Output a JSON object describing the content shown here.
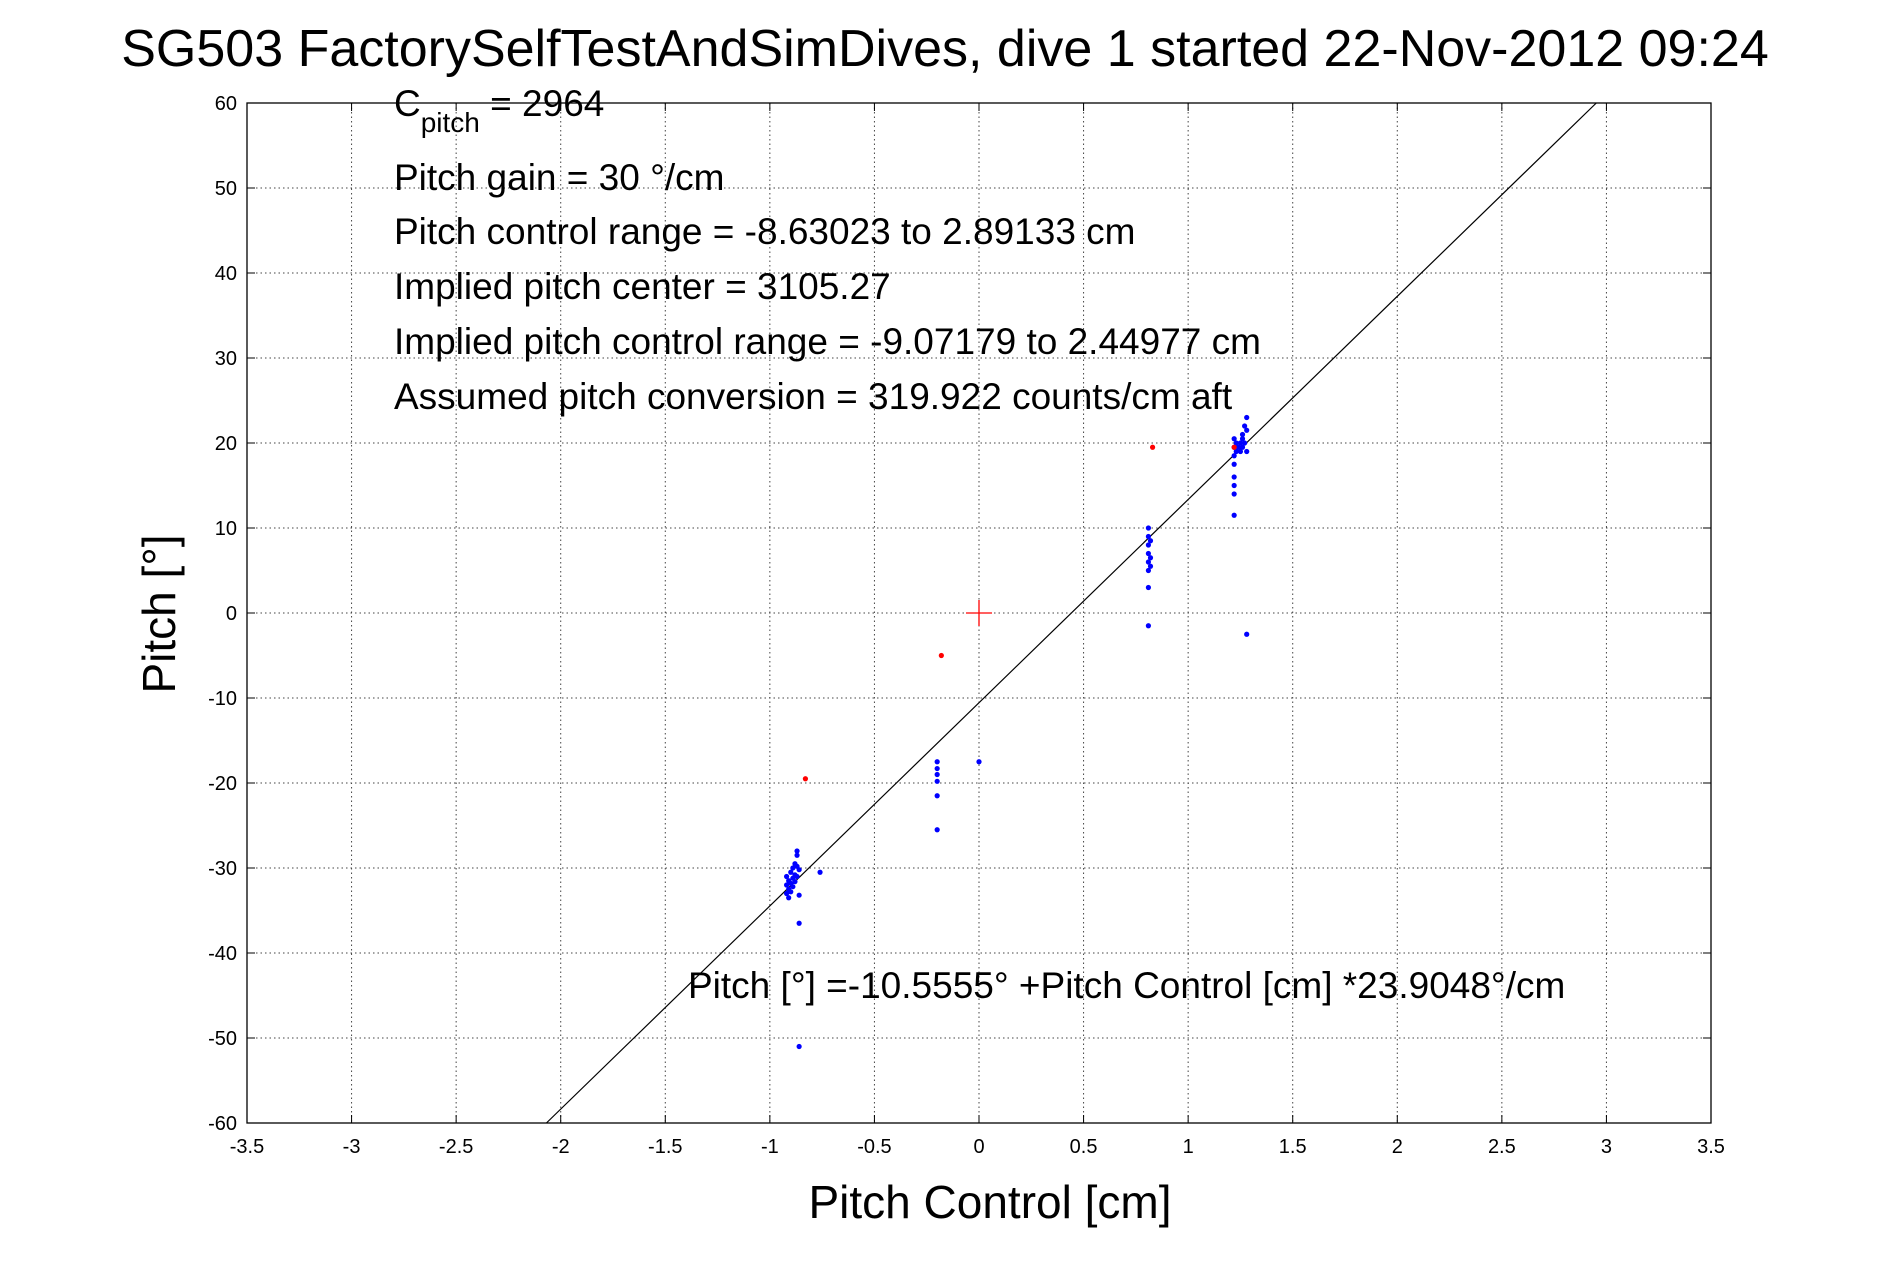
{
  "chart_data": {
    "type": "scatter",
    "title": "SG503 FactorySelfTestAndSimDives, dive 1 started 22-Nov-2012 09:24",
    "xlabel": "Pitch Control [cm]",
    "ylabel": "Pitch [°]",
    "xlim": [
      -3.5,
      3.5
    ],
    "ylim": [
      -60,
      60
    ],
    "xticks": [
      -3.5,
      -3,
      -2.5,
      -2,
      -1.5,
      -1,
      -0.5,
      0,
      0.5,
      1,
      1.5,
      2,
      2.5,
      3,
      3.5
    ],
    "yticks": [
      -60,
      -50,
      -40,
      -30,
      -20,
      -10,
      0,
      10,
      20,
      30,
      40,
      50,
      60
    ],
    "xtick_labels": [
      "-3.5",
      "-3",
      "-2.5",
      "-2",
      "-1.5",
      "-1",
      "-0.5",
      "0",
      "0.5",
      "1",
      "1.5",
      "2",
      "2.5",
      "3",
      "3.5"
    ],
    "ytick_labels": [
      "-60",
      "-50",
      "-40",
      "-30",
      "-20",
      "-10",
      "0",
      "10",
      "20",
      "30",
      "40",
      "50",
      "60"
    ],
    "grid": true,
    "annotations": {
      "cpitch_symbol": "C",
      "cpitch_sub": "pitch",
      "cpitch_value": " = 2964",
      "pitch_gain": "Pitch gain = 30 °/cm",
      "pitch_control_range": "Pitch control range = -8.63023 to 2.89133 cm",
      "implied_pitch_center": "Implied pitch center = 3105.27",
      "implied_pitch_control_range": "Implied pitch control range = -9.07179 to 2.44977 cm",
      "assumed_pitch_conversion": "Assumed pitch conversion = 319.922 counts/cm aft",
      "fit_equation": "Pitch [°] =-10.5555° +Pitch Control [cm] *23.9048°/cm"
    },
    "fit_line": {
      "intercept": -10.5555,
      "slope": 23.9048
    },
    "center_marker": {
      "x": 0,
      "y": 0,
      "color": "#ff0000"
    },
    "series": [
      {
        "color": "#0000ff",
        "points": [
          [
            -0.92,
            -31.0
          ],
          [
            -0.92,
            -32.0
          ],
          [
            -0.92,
            -33.0
          ],
          [
            -0.91,
            -31.5
          ],
          [
            -0.91,
            -32.5
          ],
          [
            -0.91,
            -33.5
          ],
          [
            -0.9,
            -30.5
          ],
          [
            -0.9,
            -31.8
          ],
          [
            -0.9,
            -32.8
          ],
          [
            -0.89,
            -30.0
          ],
          [
            -0.89,
            -31.2
          ],
          [
            -0.89,
            -32.2
          ],
          [
            -0.88,
            -29.5
          ],
          [
            -0.88,
            -30.8
          ],
          [
            -0.88,
            -31.6
          ],
          [
            -0.87,
            -28.5
          ],
          [
            -0.87,
            -29.8
          ],
          [
            -0.87,
            -31.0
          ],
          [
            -0.87,
            -28.0
          ],
          [
            -0.86,
            -30.2
          ],
          [
            -0.86,
            -33.2
          ],
          [
            -0.86,
            -36.5
          ],
          [
            -0.86,
            -51.0
          ],
          [
            -0.76,
            -30.5
          ],
          [
            -0.2,
            -17.5
          ],
          [
            -0.2,
            -18.3
          ],
          [
            -0.2,
            -19.0
          ],
          [
            -0.2,
            -19.8
          ],
          [
            -0.2,
            -21.5
          ],
          [
            -0.2,
            -25.5
          ],
          [
            0.0,
            -17.5
          ],
          [
            0.81,
            10.0
          ],
          [
            0.81,
            9.0
          ],
          [
            0.81,
            8.0
          ],
          [
            0.81,
            7.0
          ],
          [
            0.81,
            6.0
          ],
          [
            0.81,
            5.0
          ],
          [
            0.81,
            3.0
          ],
          [
            0.81,
            -1.5
          ],
          [
            0.82,
            8.5
          ],
          [
            0.82,
            6.5
          ],
          [
            0.82,
            5.5
          ],
          [
            1.22,
            20.5
          ],
          [
            1.22,
            19.5
          ],
          [
            1.22,
            18.5
          ],
          [
            1.22,
            17.5
          ],
          [
            1.22,
            16.0
          ],
          [
            1.22,
            15.0
          ],
          [
            1.22,
            14.0
          ],
          [
            1.22,
            11.5
          ],
          [
            1.23,
            20.0
          ],
          [
            1.23,
            19.0
          ],
          [
            1.24,
            19.5
          ],
          [
            1.25,
            20.0
          ],
          [
            1.25,
            19.0
          ],
          [
            1.26,
            20.5
          ],
          [
            1.26,
            21.0
          ],
          [
            1.26,
            19.5
          ],
          [
            1.27,
            22.0
          ],
          [
            1.27,
            20.0
          ],
          [
            1.28,
            23.0
          ],
          [
            1.28,
            19.0
          ],
          [
            1.28,
            21.5
          ],
          [
            1.28,
            -2.5
          ]
        ]
      },
      {
        "color": "#ff0000",
        "points": [
          [
            -0.83,
            -19.5
          ],
          [
            -0.18,
            -5.0
          ],
          [
            0.83,
            19.5
          ],
          [
            1.22,
            19.5
          ]
        ]
      }
    ]
  }
}
